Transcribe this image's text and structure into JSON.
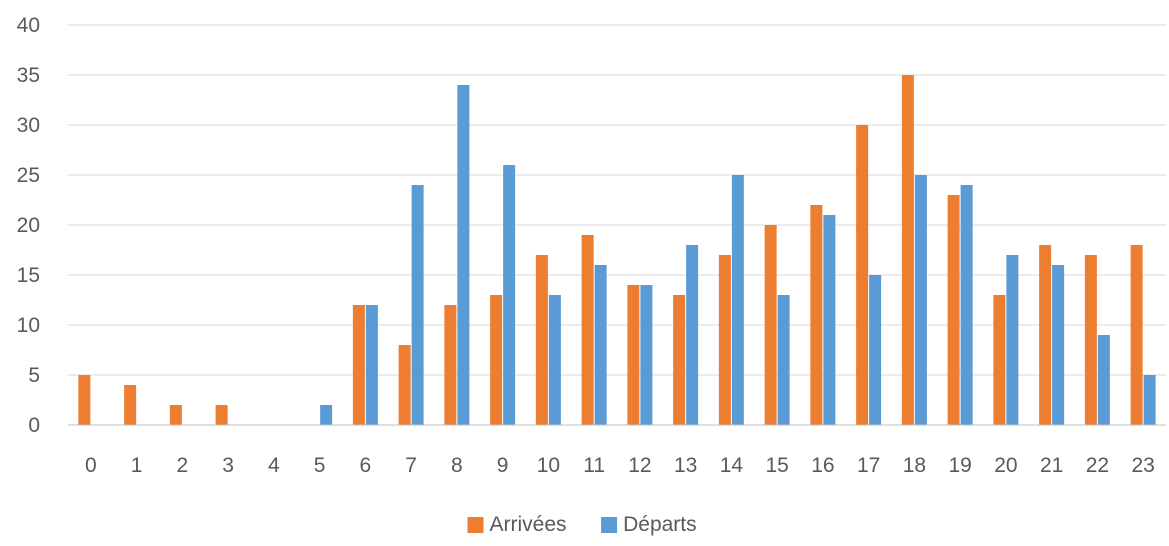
{
  "chart_data": {
    "type": "bar",
    "title": "",
    "xlabel": "",
    "ylabel": "",
    "categories": [
      "0",
      "1",
      "2",
      "3",
      "4",
      "5",
      "6",
      "7",
      "8",
      "9",
      "10",
      "11",
      "12",
      "13",
      "14",
      "15",
      "16",
      "17",
      "18",
      "19",
      "20",
      "21",
      "22",
      "23"
    ],
    "series": [
      {
        "name": "Arrivées",
        "color": "#ed7d31",
        "values": [
          5,
          4,
          2,
          2,
          0,
          0,
          12,
          8,
          12,
          13,
          17,
          19,
          14,
          13,
          17,
          20,
          22,
          30,
          35,
          23,
          13,
          18,
          17,
          18
        ]
      },
      {
        "name": "Départs",
        "color": "#5b9bd5",
        "values": [
          0,
          0,
          0,
          0,
          0,
          2,
          12,
          24,
          34,
          26,
          13,
          16,
          14,
          18,
          25,
          13,
          21,
          15,
          25,
          24,
          17,
          16,
          9,
          5
        ]
      }
    ],
    "ylim": [
      0,
      40
    ],
    "yticks": [
      0,
      5,
      10,
      15,
      20,
      25,
      30,
      35,
      40
    ],
    "grid": true,
    "legend_position": "bottom"
  }
}
